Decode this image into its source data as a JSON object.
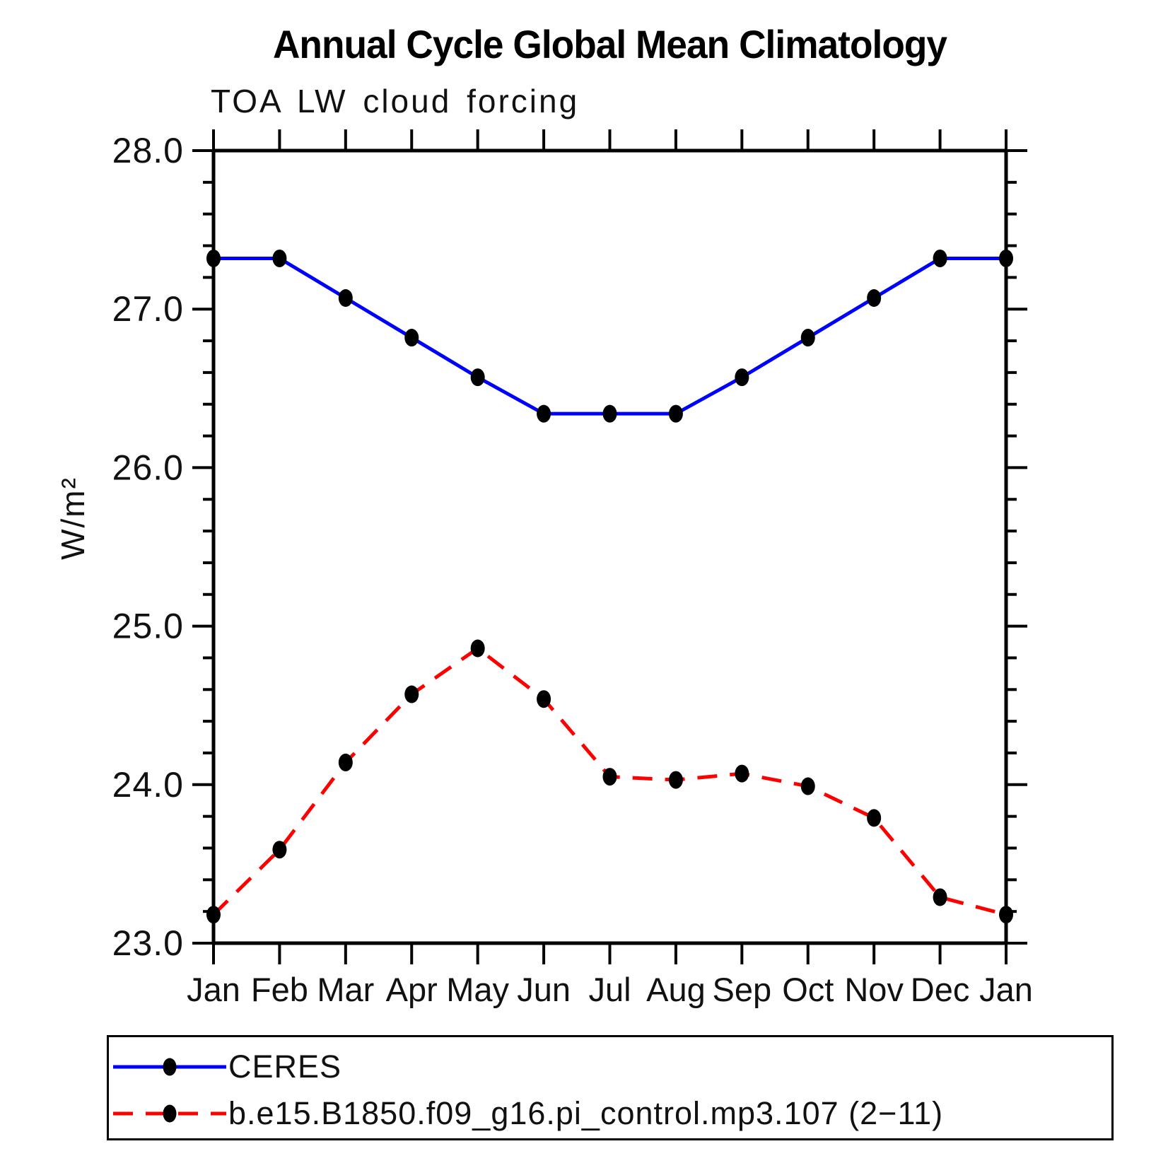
{
  "title": "Annual Cycle Global Mean Climatology",
  "chart_data": {
    "type": "line",
    "subtitle": "TOA LW cloud forcing",
    "ylabel": "W/m²",
    "x_categories": [
      "Jan",
      "Feb",
      "Mar",
      "Apr",
      "May",
      "Jun",
      "Jul",
      "Aug",
      "Sep",
      "Oct",
      "Nov",
      "Dec",
      "Jan"
    ],
    "series": [
      {
        "name": "CERES",
        "color": "#0000ff",
        "line_style": "solid",
        "marker_color": "#000000",
        "values": [
          27.32,
          27.32,
          27.07,
          26.82,
          26.57,
          26.34,
          26.34,
          26.34,
          26.57,
          26.82,
          27.07,
          27.32,
          27.32
        ]
      },
      {
        "name": "b.e15.B1850.f09_g16.pi_control.mp3.107 (2−11)",
        "color": "#ff0000",
        "line_style": "dashed",
        "marker_color": "#000000",
        "values": [
          23.18,
          23.59,
          24.14,
          24.57,
          24.86,
          24.54,
          24.05,
          24.03,
          24.07,
          23.99,
          23.79,
          23.29,
          23.18
        ]
      }
    ],
    "ylim": [
      23.0,
      28.0
    ],
    "ytick_labels": [
      "23.0",
      "24.0",
      "25.0",
      "26.0",
      "27.0",
      "28.0"
    ],
    "ytick_minor_step": 0.2,
    "grid": false,
    "legend_position": "bottom-box",
    "axis_color": "#000000"
  }
}
